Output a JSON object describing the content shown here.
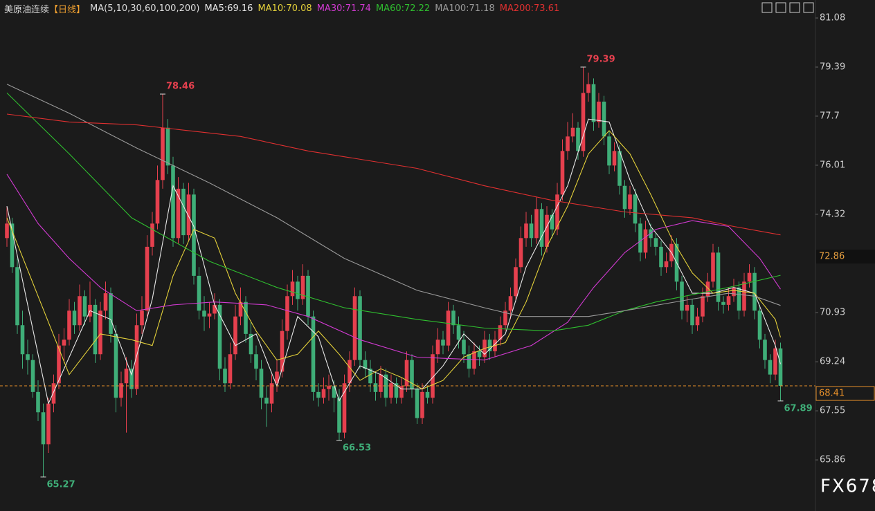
{
  "chart_data": {
    "type": "candlestick",
    "title": "美原油连续",
    "period": "【日线】",
    "indicator": "MA(5,10,30,60,100,200)",
    "up_color": "#e5404e",
    "down_color": "#3fae78",
    "ylim": [
      64.1,
      81.7
    ],
    "yticks": [
      81.08,
      79.39,
      77.7,
      76.01,
      74.32,
      70.93,
      69.24,
      67.55,
      65.86
    ],
    "crosshair_price": 72.86,
    "last_price": 68.41,
    "watermark": "FX678",
    "candles": [
      [
        73.5,
        74.6,
        73.2,
        74.0
      ],
      [
        74.0,
        74.2,
        72.3,
        72.5
      ],
      [
        72.5,
        72.8,
        70.2,
        70.5
      ],
      [
        70.5,
        71.0,
        69.0,
        69.5
      ],
      [
        69.5,
        70.0,
        68.8,
        69.3
      ],
      [
        69.3,
        69.5,
        68.0,
        68.2
      ],
      [
        68.2,
        68.6,
        67.2,
        67.5
      ],
      [
        67.5,
        67.8,
        65.27,
        66.4
      ],
      [
        66.4,
        68.0,
        66.1,
        67.8
      ],
      [
        67.8,
        68.8,
        67.5,
        68.5
      ],
      [
        68.5,
        70.2,
        68.3,
        69.8
      ],
      [
        69.8,
        70.4,
        69.2,
        70.0
      ],
      [
        70.0,
        71.4,
        69.8,
        71.0
      ],
      [
        71.0,
        71.3,
        70.2,
        70.5
      ],
      [
        70.5,
        71.9,
        70.3,
        71.5
      ],
      [
        71.5,
        71.7,
        70.5,
        70.8
      ],
      [
        70.8,
        72.0,
        70.6,
        71.2
      ],
      [
        71.2,
        71.4,
        69.2,
        69.5
      ],
      [
        69.5,
        71.3,
        69.3,
        71.0
      ],
      [
        71.0,
        72.0,
        70.7,
        71.6
      ],
      [
        71.6,
        71.8,
        69.9,
        70.2
      ],
      [
        70.2,
        70.5,
        67.5,
        68.0
      ],
      [
        68.0,
        68.9,
        67.7,
        68.5
      ],
      [
        68.5,
        69.4,
        66.8,
        69.0
      ],
      [
        69.0,
        69.3,
        68.0,
        68.3
      ],
      [
        68.3,
        70.9,
        68.1,
        70.5
      ],
      [
        70.5,
        71.5,
        70.2,
        71.0
      ],
      [
        71.0,
        73.6,
        70.8,
        73.2
      ],
      [
        73.2,
        74.4,
        72.9,
        74.0
      ],
      [
        74.0,
        76.0,
        73.8,
        75.5
      ],
      [
        75.5,
        78.46,
        75.2,
        77.3
      ],
      [
        77.3,
        77.6,
        75.7,
        76.0
      ],
      [
        76.0,
        76.3,
        73.2,
        73.5
      ],
      [
        73.5,
        75.6,
        73.3,
        75.2
      ],
      [
        75.2,
        75.4,
        73.3,
        73.6
      ],
      [
        73.6,
        75.4,
        73.4,
        75.0
      ],
      [
        75.0,
        75.2,
        71.9,
        72.2
      ],
      [
        72.2,
        72.5,
        70.7,
        71.0
      ],
      [
        71.0,
        71.5,
        70.3,
        70.8
      ],
      [
        70.8,
        71.3,
        70.4,
        70.9
      ],
      [
        70.9,
        71.6,
        70.7,
        71.2
      ],
      [
        71.2,
        71.4,
        68.6,
        69.0
      ],
      [
        69.0,
        69.4,
        68.2,
        68.5
      ],
      [
        68.5,
        69.9,
        68.3,
        69.5
      ],
      [
        69.5,
        71.2,
        69.3,
        70.8
      ],
      [
        70.8,
        71.8,
        70.5,
        71.3
      ],
      [
        71.3,
        71.5,
        69.9,
        70.2
      ],
      [
        70.2,
        70.6,
        69.2,
        69.5
      ],
      [
        69.5,
        69.8,
        68.6,
        69.0
      ],
      [
        69.0,
        69.3,
        67.6,
        68.0
      ],
      [
        68.0,
        68.4,
        67.0,
        67.8
      ],
      [
        67.8,
        68.8,
        67.5,
        68.5
      ],
      [
        68.5,
        69.3,
        68.2,
        68.9
      ],
      [
        68.9,
        70.7,
        68.7,
        70.3
      ],
      [
        70.3,
        71.9,
        70.0,
        71.5
      ],
      [
        71.5,
        72.4,
        71.2,
        72.0
      ],
      [
        72.0,
        72.2,
        71.0,
        71.4
      ],
      [
        71.4,
        72.6,
        71.2,
        72.2
      ],
      [
        72.2,
        72.4,
        70.5,
        70.8
      ],
      [
        70.8,
        71.0,
        67.9,
        68.2
      ],
      [
        68.2,
        68.5,
        67.7,
        68.0
      ],
      [
        68.0,
        68.7,
        67.8,
        68.3
      ],
      [
        68.3,
        68.8,
        67.9,
        68.4
      ],
      [
        68.4,
        68.6,
        67.5,
        68.0
      ],
      [
        68.0,
        68.3,
        66.53,
        66.8
      ],
      [
        66.8,
        68.8,
        66.6,
        68.5
      ],
      [
        68.5,
        69.6,
        68.2,
        69.3
      ],
      [
        69.3,
        71.8,
        69.1,
        71.5
      ],
      [
        71.5,
        71.7,
        69.0,
        69.3
      ],
      [
        69.3,
        69.6,
        68.7,
        69.0
      ],
      [
        69.0,
        69.3,
        68.2,
        68.5
      ],
      [
        68.5,
        68.9,
        67.9,
        68.2
      ],
      [
        68.2,
        69.1,
        68.0,
        68.8
      ],
      [
        68.8,
        69.0,
        67.7,
        68.0
      ],
      [
        68.0,
        68.8,
        67.8,
        68.5
      ],
      [
        68.5,
        68.7,
        67.8,
        68.0
      ],
      [
        68.0,
        68.7,
        67.8,
        68.4
      ],
      [
        68.4,
        69.6,
        68.2,
        69.3
      ],
      [
        69.3,
        69.5,
        68.0,
        68.3
      ],
      [
        68.3,
        68.5,
        67.1,
        67.3
      ],
      [
        67.3,
        68.5,
        67.1,
        68.2
      ],
      [
        68.2,
        68.4,
        67.8,
        68.0
      ],
      [
        68.0,
        69.8,
        67.8,
        69.5
      ],
      [
        69.5,
        70.4,
        69.2,
        70.0
      ],
      [
        70.0,
        70.3,
        69.5,
        69.8
      ],
      [
        69.8,
        71.3,
        69.6,
        71.0
      ],
      [
        71.0,
        71.2,
        70.2,
        70.5
      ],
      [
        70.5,
        70.8,
        69.7,
        70.0
      ],
      [
        70.0,
        70.3,
        69.2,
        69.5
      ],
      [
        69.5,
        69.8,
        68.7,
        69.0
      ],
      [
        69.0,
        69.9,
        68.8,
        69.6
      ],
      [
        69.6,
        69.8,
        69.1,
        69.4
      ],
      [
        69.4,
        70.3,
        69.2,
        70.0
      ],
      [
        70.0,
        70.2,
        69.3,
        69.6
      ],
      [
        69.6,
        70.3,
        69.4,
        70.0
      ],
      [
        70.0,
        70.8,
        69.8,
        70.5
      ],
      [
        70.5,
        71.3,
        70.3,
        71.0
      ],
      [
        71.0,
        71.8,
        70.7,
        71.5
      ],
      [
        71.5,
        72.8,
        71.3,
        72.5
      ],
      [
        72.5,
        73.9,
        72.3,
        73.5
      ],
      [
        73.5,
        74.4,
        73.2,
        74.0
      ],
      [
        74.0,
        74.3,
        73.2,
        73.5
      ],
      [
        73.5,
        74.9,
        73.3,
        74.5
      ],
      [
        74.5,
        74.7,
        72.9,
        73.2
      ],
      [
        73.2,
        74.6,
        73.0,
        74.3
      ],
      [
        74.3,
        74.5,
        73.5,
        73.8
      ],
      [
        73.8,
        75.4,
        73.6,
        75.0
      ],
      [
        75.0,
        76.9,
        74.8,
        76.5
      ],
      [
        76.5,
        77.5,
        76.2,
        77.0
      ],
      [
        77.0,
        77.8,
        76.8,
        77.3
      ],
      [
        77.3,
        77.5,
        76.2,
        76.5
      ],
      [
        76.5,
        79.39,
        76.3,
        78.5
      ],
      [
        78.5,
        79.2,
        78.2,
        78.8
      ],
      [
        78.8,
        79.0,
        77.2,
        77.5
      ],
      [
        77.5,
        78.5,
        77.3,
        78.2
      ],
      [
        78.2,
        78.4,
        76.7,
        77.0
      ],
      [
        77.0,
        77.2,
        75.7,
        76.0
      ],
      [
        76.0,
        76.8,
        75.8,
        76.5
      ],
      [
        76.5,
        76.7,
        75.0,
        75.3
      ],
      [
        75.3,
        75.5,
        74.2,
        74.5
      ],
      [
        74.5,
        75.3,
        74.3,
        75.0
      ],
      [
        75.0,
        75.2,
        73.7,
        74.0
      ],
      [
        74.0,
        74.2,
        72.7,
        73.0
      ],
      [
        73.0,
        74.1,
        72.8,
        73.8
      ],
      [
        73.8,
        74.0,
        73.2,
        73.5
      ],
      [
        73.5,
        73.7,
        72.9,
        73.2
      ],
      [
        73.2,
        73.4,
        72.2,
        72.5
      ],
      [
        72.5,
        73.0,
        72.3,
        72.7
      ],
      [
        72.7,
        73.6,
        72.5,
        73.3
      ],
      [
        73.3,
        73.5,
        71.7,
        72.0
      ],
      [
        72.0,
        72.2,
        70.7,
        71.0
      ],
      [
        71.0,
        71.5,
        70.6,
        71.2
      ],
      [
        71.2,
        71.4,
        70.2,
        70.5
      ],
      [
        70.5,
        71.1,
        70.3,
        70.8
      ],
      [
        70.8,
        71.8,
        70.6,
        71.5
      ],
      [
        71.5,
        72.3,
        71.3,
        72.0
      ],
      [
        72.0,
        73.3,
        71.8,
        73.0
      ],
      [
        73.0,
        73.2,
        71.0,
        71.3
      ],
      [
        71.3,
        71.5,
        70.9,
        71.2
      ],
      [
        71.2,
        71.8,
        71.0,
        71.5
      ],
      [
        71.5,
        72.1,
        71.3,
        71.8
      ],
      [
        71.8,
        72.0,
        70.7,
        71.0
      ],
      [
        71.0,
        72.3,
        70.8,
        72.0
      ],
      [
        72.0,
        72.6,
        71.8,
        72.3
      ],
      [
        72.3,
        72.5,
        70.7,
        71.0
      ],
      [
        71.0,
        71.2,
        69.7,
        70.0
      ],
      [
        70.0,
        70.2,
        69.0,
        69.3
      ],
      [
        69.3,
        69.5,
        68.5,
        68.8
      ],
      [
        68.8,
        70.0,
        68.6,
        69.7
      ],
      [
        69.7,
        69.9,
        67.89,
        68.41
      ]
    ],
    "annotations": [
      {
        "x": 30,
        "value": 78.46
      },
      {
        "x": 111,
        "value": 79.39
      },
      {
        "x": 7,
        "value": 65.27
      },
      {
        "x": 64,
        "value": 66.53
      },
      {
        "x": 149,
        "value": 67.89
      }
    ],
    "ma_lines": [
      {
        "label": "MA5:69.16",
        "color": "#e8e8e8",
        "x": [
          0,
          4,
          8,
          12,
          16,
          20,
          24,
          28,
          32,
          36,
          40,
          44,
          48,
          52,
          56,
          60,
          64,
          68,
          72,
          76,
          80,
          84,
          88,
          92,
          96,
          100,
          104,
          108,
          112,
          116,
          120,
          124,
          128,
          132,
          136,
          140,
          144,
          148,
          149
        ],
        "values": [
          74.6,
          71.2,
          67.8,
          69.4,
          71.0,
          70.7,
          68.8,
          71.4,
          75.3,
          73.9,
          71.2,
          69.8,
          70.2,
          68.4,
          70.8,
          70.1,
          67.9,
          69.1,
          68.8,
          68.3,
          68.3,
          69.1,
          70.2,
          69.5,
          70.2,
          72.5,
          73.9,
          75.3,
          77.6,
          77.5,
          75.5,
          73.9,
          73.0,
          71.6,
          71.6,
          71.8,
          71.6,
          69.8,
          69.16
        ]
      },
      {
        "label": "MA10:70.08",
        "color": "#e3d03a",
        "x": [
          0,
          6,
          12,
          18,
          24,
          28,
          32,
          36,
          40,
          44,
          48,
          52,
          56,
          60,
          64,
          68,
          72,
          76,
          80,
          84,
          88,
          92,
          96,
          100,
          104,
          108,
          112,
          116,
          120,
          124,
          128,
          132,
          136,
          140,
          144,
          148,
          149
        ],
        "values": [
          74.2,
          71.5,
          68.8,
          70.2,
          70.0,
          69.8,
          72.2,
          73.8,
          73.5,
          71.6,
          70.3,
          69.3,
          69.5,
          70.3,
          69.5,
          68.6,
          69.0,
          68.7,
          68.3,
          68.6,
          69.4,
          69.7,
          69.9,
          71.3,
          73.2,
          74.6,
          76.4,
          77.2,
          76.4,
          75.0,
          73.5,
          72.3,
          71.6,
          71.7,
          71.6,
          70.7,
          70.08
        ]
      },
      {
        "label": "MA30:71.74",
        "color": "#d23ad2",
        "x": [
          0,
          6,
          12,
          18,
          25,
          32,
          40,
          50,
          58,
          68,
          79,
          92,
          101,
          108,
          113,
          119,
          125,
          132,
          139,
          145,
          149
        ],
        "values": [
          75.7,
          74.0,
          72.8,
          71.8,
          71.0,
          71.2,
          71.3,
          71.2,
          70.8,
          70.0,
          69.4,
          69.3,
          69.8,
          70.6,
          71.8,
          73.0,
          73.8,
          74.1,
          73.9,
          72.8,
          71.74
        ]
      },
      {
        "label": "MA60:72.22",
        "color": "#2fbf2f",
        "x": [
          0,
          12,
          24,
          30,
          39,
          52,
          65,
          79,
          92,
          105,
          112,
          119,
          125,
          139,
          149
        ],
        "values": [
          78.5,
          76.4,
          74.2,
          73.6,
          72.7,
          71.8,
          71.1,
          70.7,
          70.4,
          70.3,
          70.5,
          71.0,
          71.3,
          71.8,
          72.22
        ]
      },
      {
        "label": "MA100:71.18",
        "color": "#9a9a9a",
        "x": [
          0,
          12,
          25,
          32,
          39,
          52,
          65,
          79,
          92,
          99,
          112,
          119,
          132,
          139,
          144,
          149
        ],
        "values": [
          78.8,
          77.8,
          76.6,
          76.0,
          75.4,
          74.2,
          72.8,
          71.7,
          71.1,
          70.8,
          70.8,
          71.0,
          71.4,
          71.6,
          71.5,
          71.18
        ]
      },
      {
        "label": "MA200:73.61",
        "color": "#e03030",
        "x": [
          0,
          12,
          25,
          45,
          58,
          79,
          92,
          105,
          119,
          132,
          140,
          149
        ],
        "values": [
          77.77,
          77.5,
          77.4,
          77.0,
          76.5,
          75.9,
          75.3,
          74.8,
          74.4,
          74.2,
          73.9,
          73.61
        ]
      }
    ]
  }
}
